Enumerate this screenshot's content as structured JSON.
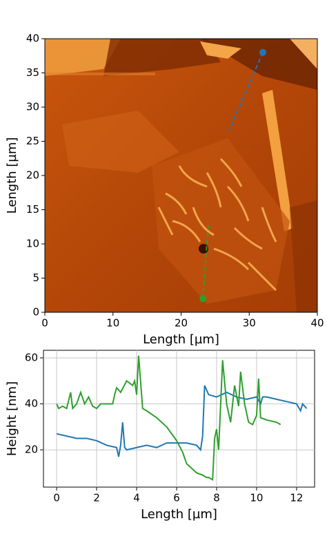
{
  "chart_data": [
    {
      "type": "image",
      "xlabel": "Length [µm]",
      "ylabel": "Length [µm]",
      "xlim": [
        0,
        40
      ],
      "ylim": [
        0,
        40
      ],
      "xticks": [
        0,
        10,
        20,
        30,
        40
      ],
      "yticks": [
        0,
        5,
        10,
        15,
        20,
        25,
        30,
        35,
        40
      ],
      "profiles": [
        {
          "color": "#1f77b4",
          "x": [
            32,
            27
          ],
          "y": [
            38,
            26.5
          ]
        },
        {
          "color": "#2ca02c",
          "x": [
            23.2,
            24
          ],
          "y": [
            2,
            13
          ]
        }
      ]
    },
    {
      "type": "line",
      "xlabel": "Length [µm]",
      "ylabel": "Height [nm]",
      "xlim": [
        -0.66,
        12.9
      ],
      "ylim": [
        3.8,
        63.3
      ],
      "xticks": [
        0,
        2,
        4,
        6,
        8,
        10,
        12
      ],
      "yticks": [
        20,
        40,
        60
      ],
      "grid": true,
      "series": [
        {
          "color": "#1f77b4",
          "x": [
            0,
            0.5,
            1,
            1.5,
            2,
            2.5,
            3,
            3.1,
            3.2,
            3.3,
            3.4,
            3.5,
            4,
            4.5,
            5,
            5.5,
            6,
            6.5,
            7,
            7.2,
            7.3,
            7.4,
            7.6,
            8,
            8.5,
            9,
            9.5,
            10,
            10.2,
            10.3,
            10.5,
            11,
            11.5,
            12,
            12.2,
            12.3,
            12.5
          ],
          "values": [
            27,
            26,
            25,
            25,
            24,
            22,
            21,
            17,
            22,
            32,
            21,
            20,
            21,
            22,
            21,
            23,
            23,
            23,
            22,
            20,
            26,
            48,
            44,
            43,
            45,
            43,
            42,
            43,
            40,
            43,
            43,
            42,
            41,
            40,
            37,
            40,
            38
          ]
        },
        {
          "color": "#2ca02c",
          "x": [
            0,
            0.1,
            0.3,
            0.5,
            0.7,
            0.8,
            1,
            1.2,
            1.4,
            1.6,
            1.8,
            2,
            2.2,
            2.5,
            2.8,
            2.9,
            3,
            3.2,
            3.5,
            3.8,
            3.9,
            4,
            4.1,
            4.3,
            4.5,
            5,
            5.5,
            6,
            6.3,
            6.5,
            7,
            7.3,
            7.5,
            7.6,
            7.8,
            7.9,
            8,
            8.1,
            8.3,
            8.5,
            8.7,
            8.9,
            9.1,
            9.2,
            9.4,
            9.6,
            9.8,
            10,
            10.1,
            10.2,
            10.5,
            11,
            11.2
          ],
          "values": [
            40,
            38,
            39,
            38,
            45,
            38,
            40,
            45,
            40,
            43,
            39,
            38,
            40,
            40,
            40,
            44,
            47,
            45,
            50,
            48,
            50,
            44,
            61,
            38,
            37,
            34,
            30,
            24,
            19,
            14,
            10,
            9,
            8,
            8,
            7,
            25,
            29,
            20,
            59,
            40,
            32,
            48,
            39,
            54,
            40,
            32,
            31,
            35,
            51,
            34,
            33,
            32,
            31
          ]
        }
      ]
    }
  ]
}
